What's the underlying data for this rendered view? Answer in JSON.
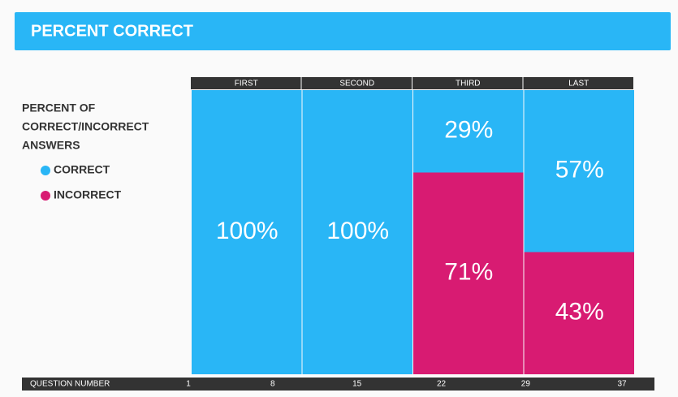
{
  "chart_data": {
    "type": "marimekko",
    "title": "PERCENT CORRECT",
    "legend_title": [
      "PERCENT OF",
      "CORRECT/INCORRECT",
      "ANSWERS"
    ],
    "categories": [
      "FIRST",
      "SECOND",
      "THIRD",
      "LAST"
    ],
    "series": [
      {
        "name": "CORRECT",
        "color": "#29b6f6",
        "values": [
          100,
          100,
          29,
          57
        ],
        "value_labels": [
          "100%",
          "100%",
          "29%",
          "57%"
        ]
      },
      {
        "name": "INCORRECT",
        "color": "#d81b72",
        "values": [
          0,
          0,
          71,
          43
        ],
        "value_labels": [
          null,
          null,
          "71%",
          "43%"
        ]
      }
    ],
    "ylim": [
      0,
      100
    ],
    "x_label": "QUESTION NUMBER",
    "xlim": [
      1,
      37
    ],
    "xticks": [
      1,
      8,
      15,
      22,
      29,
      37
    ]
  }
}
